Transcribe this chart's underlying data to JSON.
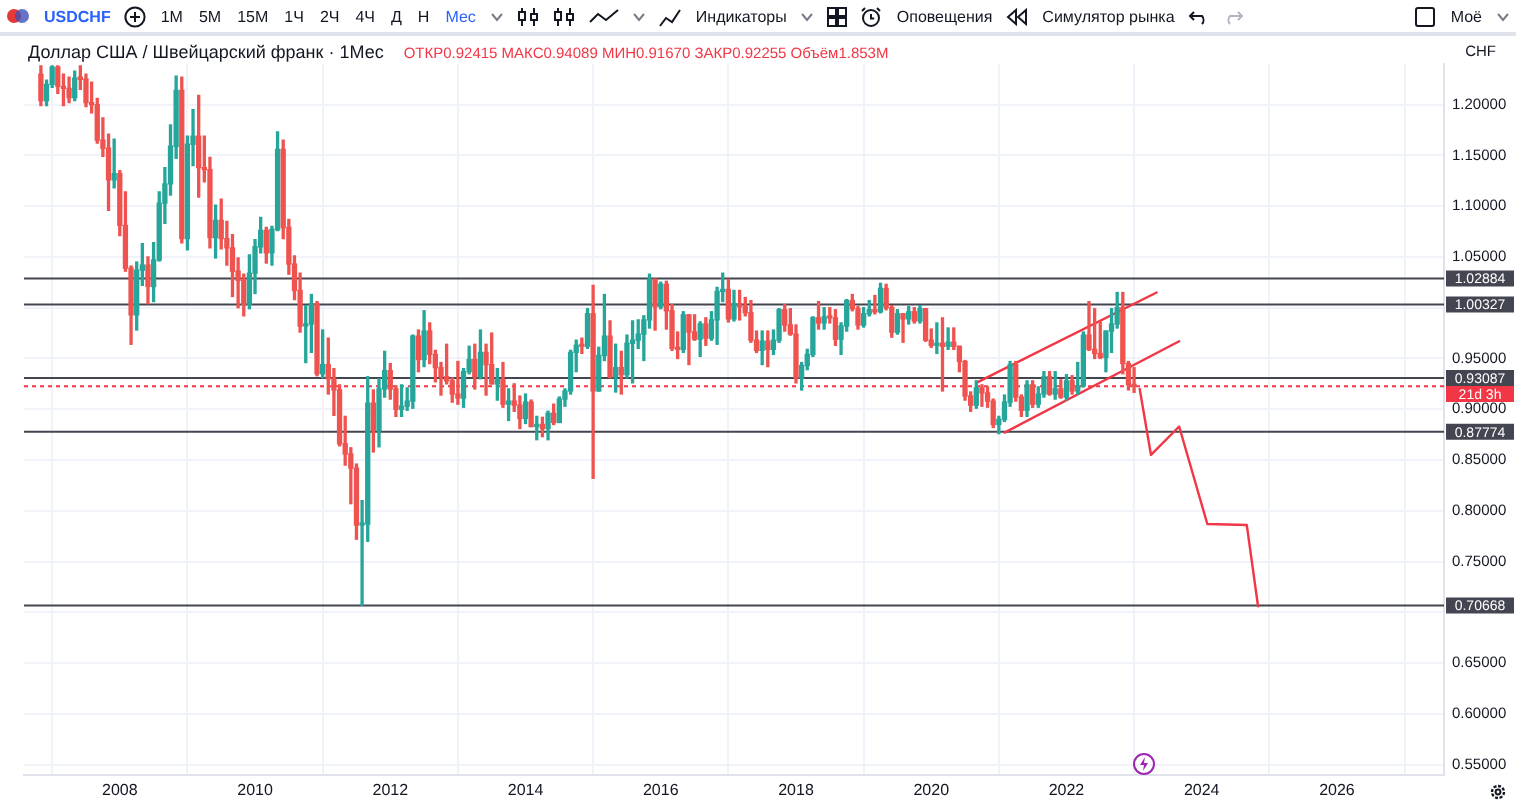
{
  "chart_data": {
    "type": "candlestick",
    "title": "Доллар США / Швейцарский франк · 1Мес",
    "subtitle": "ОТКР0.92415 МАКС0.94089 МИН0.91670 ЗАКР0.92255 Объём1.853M",
    "ylabel": "CHF",
    "annotations": [
      "USDCHF",
      "1М",
      "5М",
      "15М",
      "1Ч",
      "2Ч",
      "4Ч",
      "Д",
      "Н",
      "Мес",
      "Индикаторы",
      "Оповещения",
      "Симулятор рынка",
      "Моё"
    ],
    "x": [
      "2006-11",
      "2006-12",
      "2007-01",
      "2007-02",
      "2007-03",
      "2007-04",
      "2007-05",
      "2007-06",
      "2007-07",
      "2007-08",
      "2007-09",
      "2007-10",
      "2007-11",
      "2007-12",
      "2008-01",
      "2008-02",
      "2008-03",
      "2008-04",
      "2008-05",
      "2008-06",
      "2008-07",
      "2008-08",
      "2008-09",
      "2008-10",
      "2008-11",
      "2008-12",
      "2009-01",
      "2009-02",
      "2009-03",
      "2009-04",
      "2009-05",
      "2009-06",
      "2009-07",
      "2009-08",
      "2009-09",
      "2009-10",
      "2009-11",
      "2009-12",
      "2010-01",
      "2010-02",
      "2010-03",
      "2010-04",
      "2010-05",
      "2010-06",
      "2010-07",
      "2010-08",
      "2010-09",
      "2010-10",
      "2010-11",
      "2010-12",
      "2011-01",
      "2011-02",
      "2011-03",
      "2011-04",
      "2011-05",
      "2011-06",
      "2011-07",
      "2011-08",
      "2011-09",
      "2011-10",
      "2011-11",
      "2011-12",
      "2012-01",
      "2012-02",
      "2012-03",
      "2012-04",
      "2012-05",
      "2012-06",
      "2012-07",
      "2012-08",
      "2012-09",
      "2012-10",
      "2012-11",
      "2012-12",
      "2013-01",
      "2013-02",
      "2013-03",
      "2013-04",
      "2013-05",
      "2013-06",
      "2013-07",
      "2013-08",
      "2013-09",
      "2013-10",
      "2013-11",
      "2013-12",
      "2014-01",
      "2014-02",
      "2014-03",
      "2014-04",
      "2014-05",
      "2014-06",
      "2014-07",
      "2014-08",
      "2014-09",
      "2014-10",
      "2014-11",
      "2014-12",
      "2015-01",
      "2015-02",
      "2015-03",
      "2015-04",
      "2015-05",
      "2015-06",
      "2015-07",
      "2015-08",
      "2015-09",
      "2015-10",
      "2015-11",
      "2015-12",
      "2016-01",
      "2016-02",
      "2016-03",
      "2016-04",
      "2016-05",
      "2016-06",
      "2016-07",
      "2016-08",
      "2016-09",
      "2016-10",
      "2016-11",
      "2016-12",
      "2017-01",
      "2017-02",
      "2017-03",
      "2017-04",
      "2017-05",
      "2017-06",
      "2017-07",
      "2017-08",
      "2017-09",
      "2017-10",
      "2017-11",
      "2017-12",
      "2018-01",
      "2018-02",
      "2018-03",
      "2018-04",
      "2018-05",
      "2018-06",
      "2018-07",
      "2018-08",
      "2018-09",
      "2018-10",
      "2018-11",
      "2018-12",
      "2019-01",
      "2019-02",
      "2019-03",
      "2019-04",
      "2019-05",
      "2019-06",
      "2019-07",
      "2019-08",
      "2019-09",
      "2019-10",
      "2019-11",
      "2019-12",
      "2020-01",
      "2020-02",
      "2020-03",
      "2020-04",
      "2020-05",
      "2020-06",
      "2020-07",
      "2020-08",
      "2020-09",
      "2020-10",
      "2020-11",
      "2020-12",
      "2021-01",
      "2021-02",
      "2021-03",
      "2021-04",
      "2021-05",
      "2021-06",
      "2021-07",
      "2021-08",
      "2021-09",
      "2021-10",
      "2021-11",
      "2021-12",
      "2022-01",
      "2022-02",
      "2022-03",
      "2022-04",
      "2022-05",
      "2022-06",
      "2022-07",
      "2022-08",
      "2022-09",
      "2022-10",
      "2022-11",
      "2022-12",
      "2023-01"
    ],
    "ohlc": [
      [
        1.23,
        1.238,
        1.199,
        1.204
      ],
      [
        1.204,
        1.224,
        1.199,
        1.22
      ],
      [
        1.22,
        1.238,
        1.217,
        1.237
      ],
      [
        1.237,
        1.238,
        1.211,
        1.218
      ],
      [
        1.218,
        1.23,
        1.199,
        1.216
      ],
      [
        1.216,
        1.227,
        1.202,
        1.207
      ],
      [
        1.207,
        1.233,
        1.204,
        1.226
      ],
      [
        1.226,
        1.238,
        1.215,
        1.225
      ],
      [
        1.225,
        1.23,
        1.198,
        1.202
      ],
      [
        1.202,
        1.222,
        1.192,
        1.2
      ],
      [
        1.2,
        1.206,
        1.162,
        1.165
      ],
      [
        1.165,
        1.187,
        1.149,
        1.157
      ],
      [
        1.157,
        1.171,
        1.096,
        1.126
      ],
      [
        1.126,
        1.166,
        1.118,
        1.132
      ],
      [
        1.132,
        1.135,
        1.071,
        1.081
      ],
      [
        1.081,
        1.114,
        1.036,
        1.039
      ],
      [
        1.039,
        1.041,
        0.964,
        0.993
      ],
      [
        0.993,
        1.045,
        0.978,
        1.037
      ],
      [
        1.037,
        1.063,
        1.022,
        1.042
      ],
      [
        1.042,
        1.05,
        1.004,
        1.021
      ],
      [
        1.021,
        1.064,
        1.006,
        1.047
      ],
      [
        1.047,
        1.114,
        1.046,
        1.103
      ],
      [
        1.103,
        1.138,
        1.083,
        1.122
      ],
      [
        1.122,
        1.18,
        1.111,
        1.159
      ],
      [
        1.159,
        1.228,
        1.147,
        1.214
      ],
      [
        1.214,
        1.227,
        1.064,
        1.068
      ],
      [
        1.068,
        1.169,
        1.057,
        1.161
      ],
      [
        1.161,
        1.195,
        1.14,
        1.169
      ],
      [
        1.169,
        1.209,
        1.109,
        1.138
      ],
      [
        1.138,
        1.169,
        1.124,
        1.136
      ],
      [
        1.136,
        1.148,
        1.059,
        1.069
      ],
      [
        1.069,
        1.101,
        1.049,
        1.086
      ],
      [
        1.086,
        1.107,
        1.058,
        1.068
      ],
      [
        1.068,
        1.085,
        1.042,
        1.059
      ],
      [
        1.059,
        1.072,
        1.011,
        1.036
      ],
      [
        1.036,
        1.049,
        1.0,
        1.027
      ],
      [
        1.027,
        1.033,
        0.992,
        1.003
      ],
      [
        1.003,
        1.052,
        0.999,
        1.034
      ],
      [
        1.034,
        1.067,
        1.014,
        1.06
      ],
      [
        1.06,
        1.089,
        1.054,
        1.076
      ],
      [
        1.076,
        1.079,
        1.044,
        1.054
      ],
      [
        1.054,
        1.08,
        1.042,
        1.077
      ],
      [
        1.077,
        1.173,
        1.076,
        1.156
      ],
      [
        1.156,
        1.165,
        1.068,
        1.079
      ],
      [
        1.079,
        1.087,
        1.033,
        1.043
      ],
      [
        1.043,
        1.051,
        1.008,
        1.017
      ],
      [
        1.017,
        1.034,
        0.976,
        0.982
      ],
      [
        0.982,
        1.002,
        0.946,
        0.984
      ],
      [
        0.984,
        1.013,
        0.956,
        1.004
      ],
      [
        1.004,
        1.006,
        0.933,
        0.935
      ],
      [
        0.935,
        0.978,
        0.931,
        0.944
      ],
      [
        0.944,
        0.97,
        0.915,
        0.93
      ],
      [
        0.93,
        0.94,
        0.894,
        0.919
      ],
      [
        0.919,
        0.924,
        0.864,
        0.866
      ],
      [
        0.866,
        0.893,
        0.845,
        0.856
      ],
      [
        0.856,
        0.862,
        0.807,
        0.842
      ],
      [
        0.842,
        0.846,
        0.772,
        0.786
      ],
      [
        0.786,
        0.81,
        0.707,
        0.787
      ],
      [
        0.787,
        0.932,
        0.77,
        0.906
      ],
      [
        0.906,
        0.919,
        0.858,
        0.879
      ],
      [
        0.879,
        0.93,
        0.863,
        0.92
      ],
      [
        0.92,
        0.957,
        0.912,
        0.938
      ],
      [
        0.938,
        0.945,
        0.91,
        0.92
      ],
      [
        0.92,
        0.923,
        0.893,
        0.9
      ],
      [
        0.9,
        0.924,
        0.893,
        0.903
      ],
      [
        0.903,
        0.921,
        0.899,
        0.908
      ],
      [
        0.908,
        0.973,
        0.901,
        0.972
      ],
      [
        0.972,
        0.978,
        0.937,
        0.949
      ],
      [
        0.949,
        0.997,
        0.942,
        0.977
      ],
      [
        0.977,
        0.985,
        0.945,
        0.954
      ],
      [
        0.954,
        0.958,
        0.927,
        0.941
      ],
      [
        0.941,
        0.946,
        0.914,
        0.932
      ],
      [
        0.932,
        0.964,
        0.925,
        0.928
      ],
      [
        0.928,
        0.931,
        0.907,
        0.915
      ],
      [
        0.915,
        0.947,
        0.905,
        0.911
      ],
      [
        0.911,
        0.94,
        0.902,
        0.937
      ],
      [
        0.937,
        0.962,
        0.935,
        0.949
      ],
      [
        0.949,
        0.964,
        0.92,
        0.932
      ],
      [
        0.932,
        0.978,
        0.93,
        0.956
      ],
      [
        0.956,
        0.964,
        0.914,
        0.944
      ],
      [
        0.944,
        0.975,
        0.925,
        0.925
      ],
      [
        0.925,
        0.94,
        0.909,
        0.929
      ],
      [
        0.929,
        0.946,
        0.902,
        0.905
      ],
      [
        0.905,
        0.92,
        0.889,
        0.908
      ],
      [
        0.908,
        0.925,
        0.898,
        0.904
      ],
      [
        0.904,
        0.913,
        0.881,
        0.891
      ],
      [
        0.891,
        0.915,
        0.886,
        0.907
      ],
      [
        0.907,
        0.909,
        0.883,
        0.883
      ],
      [
        0.883,
        0.893,
        0.87,
        0.885
      ],
      [
        0.885,
        0.892,
        0.873,
        0.881
      ],
      [
        0.881,
        0.898,
        0.87,
        0.896
      ],
      [
        0.896,
        0.905,
        0.885,
        0.887
      ],
      [
        0.887,
        0.912,
        0.887,
        0.91
      ],
      [
        0.91,
        0.92,
        0.903,
        0.918
      ],
      [
        0.918,
        0.958,
        0.915,
        0.956
      ],
      [
        0.956,
        0.968,
        0.937,
        0.963
      ],
      [
        0.963,
        0.97,
        0.955,
        0.962
      ],
      [
        0.962,
        0.999,
        0.96,
        0.994
      ],
      [
        0.994,
        1.022,
        0.832,
        0.918
      ],
      [
        0.918,
        0.961,
        0.918,
        0.953
      ],
      [
        0.953,
        1.013,
        0.948,
        0.972
      ],
      [
        0.972,
        0.987,
        0.931,
        0.932
      ],
      [
        0.932,
        0.964,
        0.917,
        0.941
      ],
      [
        0.941,
        0.957,
        0.915,
        0.934
      ],
      [
        0.934,
        0.973,
        0.931,
        0.965
      ],
      [
        0.965,
        0.987,
        0.926,
        0.968
      ],
      [
        0.968,
        0.988,
        0.96,
        0.974
      ],
      [
        0.974,
        0.992,
        0.948,
        0.988
      ],
      [
        0.988,
        1.033,
        0.98,
        1.028
      ],
      [
        1.028,
        1.028,
        0.978,
        1.001
      ],
      [
        1.001,
        1.025,
        0.999,
        1.023
      ],
      [
        1.023,
        1.026,
        0.979,
        0.997
      ],
      [
        0.997,
        1.003,
        0.958,
        0.96
      ],
      [
        0.96,
        0.976,
        0.95,
        0.959
      ],
      [
        0.959,
        0.996,
        0.956,
        0.993
      ],
      [
        0.993,
        0.993,
        0.944,
        0.976
      ],
      [
        0.976,
        0.993,
        0.968,
        0.969
      ],
      [
        0.969,
        0.986,
        0.952,
        0.984
      ],
      [
        0.984,
        0.99,
        0.963,
        0.97
      ],
      [
        0.97,
        0.996,
        0.968,
        0.988
      ],
      [
        0.988,
        1.02,
        0.964,
        1.016
      ],
      [
        1.016,
        1.034,
        1.006,
        1.018
      ],
      [
        1.018,
        1.028,
        0.986,
        0.989
      ],
      [
        0.989,
        1.017,
        0.987,
        1.004
      ],
      [
        1.004,
        1.017,
        0.988,
        1.001
      ],
      [
        1.001,
        1.01,
        0.992,
        0.995
      ],
      [
        0.995,
        1.007,
        0.966,
        0.968
      ],
      [
        0.968,
        0.977,
        0.956,
        0.958
      ],
      [
        0.958,
        0.977,
        0.944,
        0.967
      ],
      [
        0.967,
        0.977,
        0.942,
        0.959
      ],
      [
        0.959,
        0.978,
        0.954,
        0.968
      ],
      [
        0.968,
        0.999,
        0.966,
        0.998
      ],
      [
        0.998,
        1.003,
        0.977,
        0.983
      ],
      [
        0.983,
        0.999,
        0.973,
        0.974
      ],
      [
        0.974,
        0.983,
        0.926,
        0.931
      ],
      [
        0.931,
        0.946,
        0.919,
        0.943
      ],
      [
        0.943,
        0.959,
        0.939,
        0.954
      ],
      [
        0.954,
        0.991,
        0.952,
        0.99
      ],
      [
        0.99,
        1.006,
        0.979,
        0.985
      ],
      [
        0.985,
        1.0,
        0.979,
        0.991
      ],
      [
        0.991,
        1.0,
        0.985,
        0.99
      ],
      [
        0.99,
        0.998,
        0.963,
        0.969
      ],
      [
        0.969,
        0.985,
        0.954,
        0.982
      ],
      [
        0.982,
        1.008,
        0.977,
        1.007
      ],
      [
        1.007,
        1.013,
        0.997,
        0.999
      ],
      [
        0.999,
        1.001,
        0.979,
        0.983
      ],
      [
        0.983,
        1.0,
        0.981,
        0.994
      ],
      [
        0.994,
        1.007,
        0.992,
        0.998
      ],
      [
        0.998,
        1.012,
        0.994,
        0.996
      ],
      [
        0.996,
        1.024,
        0.995,
        1.019
      ],
      [
        1.019,
        1.023,
        0.998,
        1.0
      ],
      [
        1.0,
        1.002,
        0.971,
        0.976
      ],
      [
        0.976,
        0.998,
        0.974,
        0.994
      ],
      [
        0.994,
        0.994,
        0.966,
        0.989
      ],
      [
        0.989,
        1.001,
        0.984,
        0.996
      ],
      [
        0.996,
        1.0,
        0.985,
        0.987
      ],
      [
        0.987,
        1.002,
        0.985,
        0.999
      ],
      [
        0.999,
        0.999,
        0.967,
        0.968
      ],
      [
        0.968,
        0.979,
        0.961,
        0.963
      ],
      [
        0.963,
        0.985,
        0.955,
        0.965
      ],
      [
        0.965,
        0.99,
        0.918,
        0.962
      ],
      [
        0.962,
        0.98,
        0.959,
        0.966
      ],
      [
        0.966,
        0.98,
        0.959,
        0.962
      ],
      [
        0.962,
        0.962,
        0.937,
        0.947
      ],
      [
        0.947,
        0.948,
        0.909,
        0.913
      ],
      [
        0.913,
        0.917,
        0.898,
        0.904
      ],
      [
        0.904,
        0.928,
        0.901,
        0.921
      ],
      [
        0.921,
        0.924,
        0.903,
        0.916
      ],
      [
        0.916,
        0.922,
        0.902,
        0.908
      ],
      [
        0.908,
        0.91,
        0.882,
        0.885
      ],
      [
        0.885,
        0.893,
        0.876,
        0.89
      ],
      [
        0.89,
        0.914,
        0.888,
        0.907
      ],
      [
        0.907,
        0.947,
        0.903,
        0.944
      ],
      [
        0.944,
        0.947,
        0.908,
        0.912
      ],
      [
        0.912,
        0.914,
        0.893,
        0.899
      ],
      [
        0.899,
        0.928,
        0.893,
        0.924
      ],
      [
        0.924,
        0.928,
        0.902,
        0.905
      ],
      [
        0.905,
        0.922,
        0.902,
        0.915
      ],
      [
        0.915,
        0.937,
        0.912,
        0.932
      ],
      [
        0.932,
        0.937,
        0.914,
        0.915
      ],
      [
        0.915,
        0.937,
        0.91,
        0.92
      ],
      [
        0.92,
        0.929,
        0.911,
        0.912
      ],
      [
        0.912,
        0.934,
        0.909,
        0.928
      ],
      [
        0.928,
        0.933,
        0.915,
        0.918
      ],
      [
        0.918,
        0.946,
        0.915,
        0.923
      ],
      [
        0.923,
        0.976,
        0.922,
        0.973
      ],
      [
        0.973,
        1.006,
        0.958,
        0.959
      ],
      [
        0.959,
        0.999,
        0.95,
        0.955
      ],
      [
        0.955,
        0.986,
        0.95,
        0.951
      ],
      [
        0.951,
        0.977,
        0.937,
        0.977
      ],
      [
        0.977,
        0.999,
        0.956,
        0.984
      ],
      [
        0.984,
        1.015,
        0.98,
        1.0
      ],
      [
        1.0,
        1.015,
        0.935,
        0.945
      ],
      [
        0.945,
        0.947,
        0.919,
        0.9242
      ],
      [
        0.92415,
        0.94089,
        0.9167,
        0.92255
      ]
    ],
    "colors": [
      "#ef5350",
      "#26a69a",
      "#26a69a",
      "#ef5350",
      "#ef5350",
      "#ef5350",
      "#26a69a",
      "#ef5350",
      "#ef5350",
      "#ef5350",
      "#ef5350",
      "#ef5350",
      "#ef5350",
      "#26a69a",
      "#ef5350",
      "#ef5350",
      "#ef5350",
      "#26a69a",
      "#26a69a",
      "#ef5350",
      "#26a69a",
      "#26a69a",
      "#26a69a",
      "#26a69a",
      "#26a69a",
      "#ef5350",
      "#26a69a",
      "#26a69a",
      "#ef5350",
      "#ef5350",
      "#ef5350",
      "#26a69a",
      "#ef5350",
      "#ef5350",
      "#ef5350",
      "#ef5350",
      "#ef5350",
      "#26a69a",
      "#26a69a",
      "#26a69a",
      "#ef5350",
      "#26a69a",
      "#26a69a",
      "#ef5350",
      "#ef5350",
      "#ef5350",
      "#ef5350",
      "#26a69a",
      "#26a69a",
      "#ef5350",
      "#26a69a",
      "#ef5350",
      "#ef5350",
      "#ef5350",
      "#ef5350",
      "#ef5350",
      "#ef5350",
      "#26a69a",
      "#26a69a",
      "#ef5350",
      "#26a69a",
      "#26a69a",
      "#ef5350",
      "#ef5350",
      "#26a69a",
      "#26a69a",
      "#26a69a",
      "#ef5350",
      "#26a69a",
      "#ef5350",
      "#ef5350",
      "#ef5350",
      "#ef5350",
      "#ef5350",
      "#ef5350",
      "#26a69a",
      "#26a69a",
      "#ef5350",
      "#26a69a",
      "#ef5350",
      "#ef5350",
      "#26a69a",
      "#ef5350",
      "#26a69a",
      "#ef5350",
      "#ef5350",
      "#26a69a",
      "#ef5350",
      "#26a69a",
      "#ef5350",
      "#26a69a",
      "#ef5350",
      "#26a69a",
      "#26a69a",
      "#26a69a",
      "#26a69a",
      "#ef5350",
      "#26a69a",
      "#ef5350",
      "#26a69a",
      "#26a69a",
      "#ef5350",
      "#26a69a",
      "#ef5350",
      "#26a69a",
      "#26a69a",
      "#26a69a",
      "#26a69a",
      "#26a69a",
      "#ef5350",
      "#26a69a",
      "#ef5350",
      "#ef5350",
      "#ef5350",
      "#26a69a",
      "#ef5350",
      "#ef5350",
      "#26a69a",
      "#ef5350",
      "#26a69a",
      "#26a69a",
      "#26a69a",
      "#ef5350",
      "#26a69a",
      "#ef5350",
      "#ef5350",
      "#ef5350",
      "#ef5350",
      "#26a69a",
      "#ef5350",
      "#26a69a",
      "#26a69a",
      "#ef5350",
      "#ef5350",
      "#ef5350",
      "#26a69a",
      "#26a69a",
      "#26a69a",
      "#ef5350",
      "#26a69a",
      "#ef5350",
      "#ef5350",
      "#26a69a",
      "#26a69a",
      "#ef5350",
      "#ef5350",
      "#26a69a",
      "#26a69a",
      "#ef5350",
      "#26a69a",
      "#ef5350",
      "#ef5350",
      "#26a69a",
      "#ef5350",
      "#26a69a",
      "#ef5350",
      "#26a69a",
      "#ef5350",
      "#ef5350",
      "#26a69a",
      "#ef5350",
      "#26a69a",
      "#ef5350",
      "#ef5350",
      "#ef5350",
      "#ef5350",
      "#26a69a",
      "#ef5350",
      "#ef5350",
      "#ef5350",
      "#26a69a",
      "#26a69a",
      "#26a69a",
      "#ef5350",
      "#ef5350",
      "#26a69a",
      "#ef5350",
      "#26a69a",
      "#26a69a",
      "#ef5350",
      "#26a69a",
      "#ef5350",
      "#26a69a",
      "#ef5350",
      "#26a69a",
      "#26a69a",
      "#ef5350",
      "#ef5350",
      "#ef5350",
      "#26a69a",
      "#26a69a",
      "#26a69a",
      "#ef5350",
      "#ef5350",
      "#ef5350"
    ],
    "series": [
      {
        "type": "line",
        "color": "#f23645",
        "x": [
          "2020-09",
          "2023-05"
        ],
        "values": [
          0.926,
          1.015
        ]
      },
      {
        "type": "line",
        "color": "#f23645",
        "x": [
          "2021-02",
          "2023-09"
        ],
        "values": [
          0.877,
          0.967
        ]
      },
      {
        "type": "line",
        "color": "#f23645",
        "x": [
          "2023-02",
          "2023-04",
          "2023-09",
          "2024-02",
          "2024-09",
          "2024-11"
        ],
        "values": [
          0.92,
          0.855,
          0.883,
          0.787,
          0.786,
          0.706
        ]
      }
    ],
    "ref_lines": [
      {
        "axis": "y",
        "value": 1.02884,
        "label": "1.02884",
        "color": "#434651"
      },
      {
        "axis": "y",
        "value": 1.00327,
        "label": "1.00327",
        "color": "#434651"
      },
      {
        "axis": "y",
        "value": 0.93087,
        "label": "0.93087",
        "color": "#434651"
      },
      {
        "axis": "y",
        "value": 0.92255,
        "label": "21d 3h",
        "color": "#f23645",
        "line_style": "dotted"
      },
      {
        "axis": "y",
        "value": 0.87774,
        "label": "0.87774",
        "color": "#434651"
      },
      {
        "axis": "y",
        "value": 0.70668,
        "label": "0.70668",
        "color": "#434651"
      }
    ],
    "xlim": [
      "2006-08",
      "2027-08"
    ],
    "xticks": [
      "2008",
      "2010",
      "2012",
      "2014",
      "2016",
      "2018",
      "2020",
      "2022",
      "2024",
      "2026"
    ],
    "ylim": [
      0.54,
      1.24
    ],
    "yticks": [
      {
        "value": 0.55,
        "label": "0.55000"
      },
      {
        "value": 0.6,
        "label": "0.60000"
      },
      {
        "value": 0.65,
        "label": "0.65000"
      },
      {
        "value": 0.7,
        "label": null
      },
      {
        "value": 0.75,
        "label": "0.75000"
      },
      {
        "value": 0.8,
        "label": "0.80000"
      },
      {
        "value": 0.85,
        "label": "0.85000"
      },
      {
        "value": 0.9,
        "label": "0.90000"
      },
      {
        "value": 0.95,
        "label": "0.95000"
      },
      {
        "value": 1.0,
        "label": null
      },
      {
        "value": 1.05,
        "label": "1.05000"
      },
      {
        "value": 1.1,
        "label": "1.10000"
      },
      {
        "value": 1.15,
        "label": "1.15000"
      },
      {
        "value": 1.2,
        "label": "1.20000"
      }
    ],
    "grid": true,
    "legend": false
  }
}
